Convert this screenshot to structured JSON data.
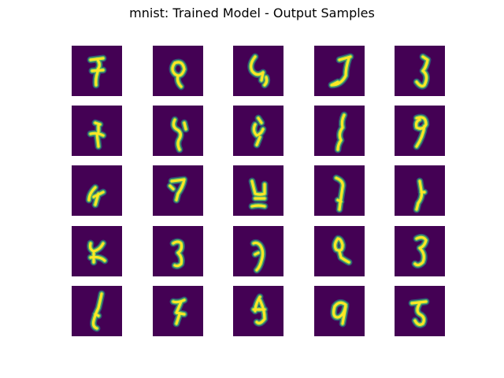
{
  "figure": {
    "title": "mnist: Trained Model - Output Samples"
  },
  "colors": {
    "background": "#ffffff",
    "tile_background": "#440154",
    "stroke_outer": "#21918c",
    "stroke_mid": "#5ec962",
    "stroke_core": "#fde725"
  },
  "grid": {
    "rows": 5,
    "cols": 5,
    "sample_count": 25
  }
}
